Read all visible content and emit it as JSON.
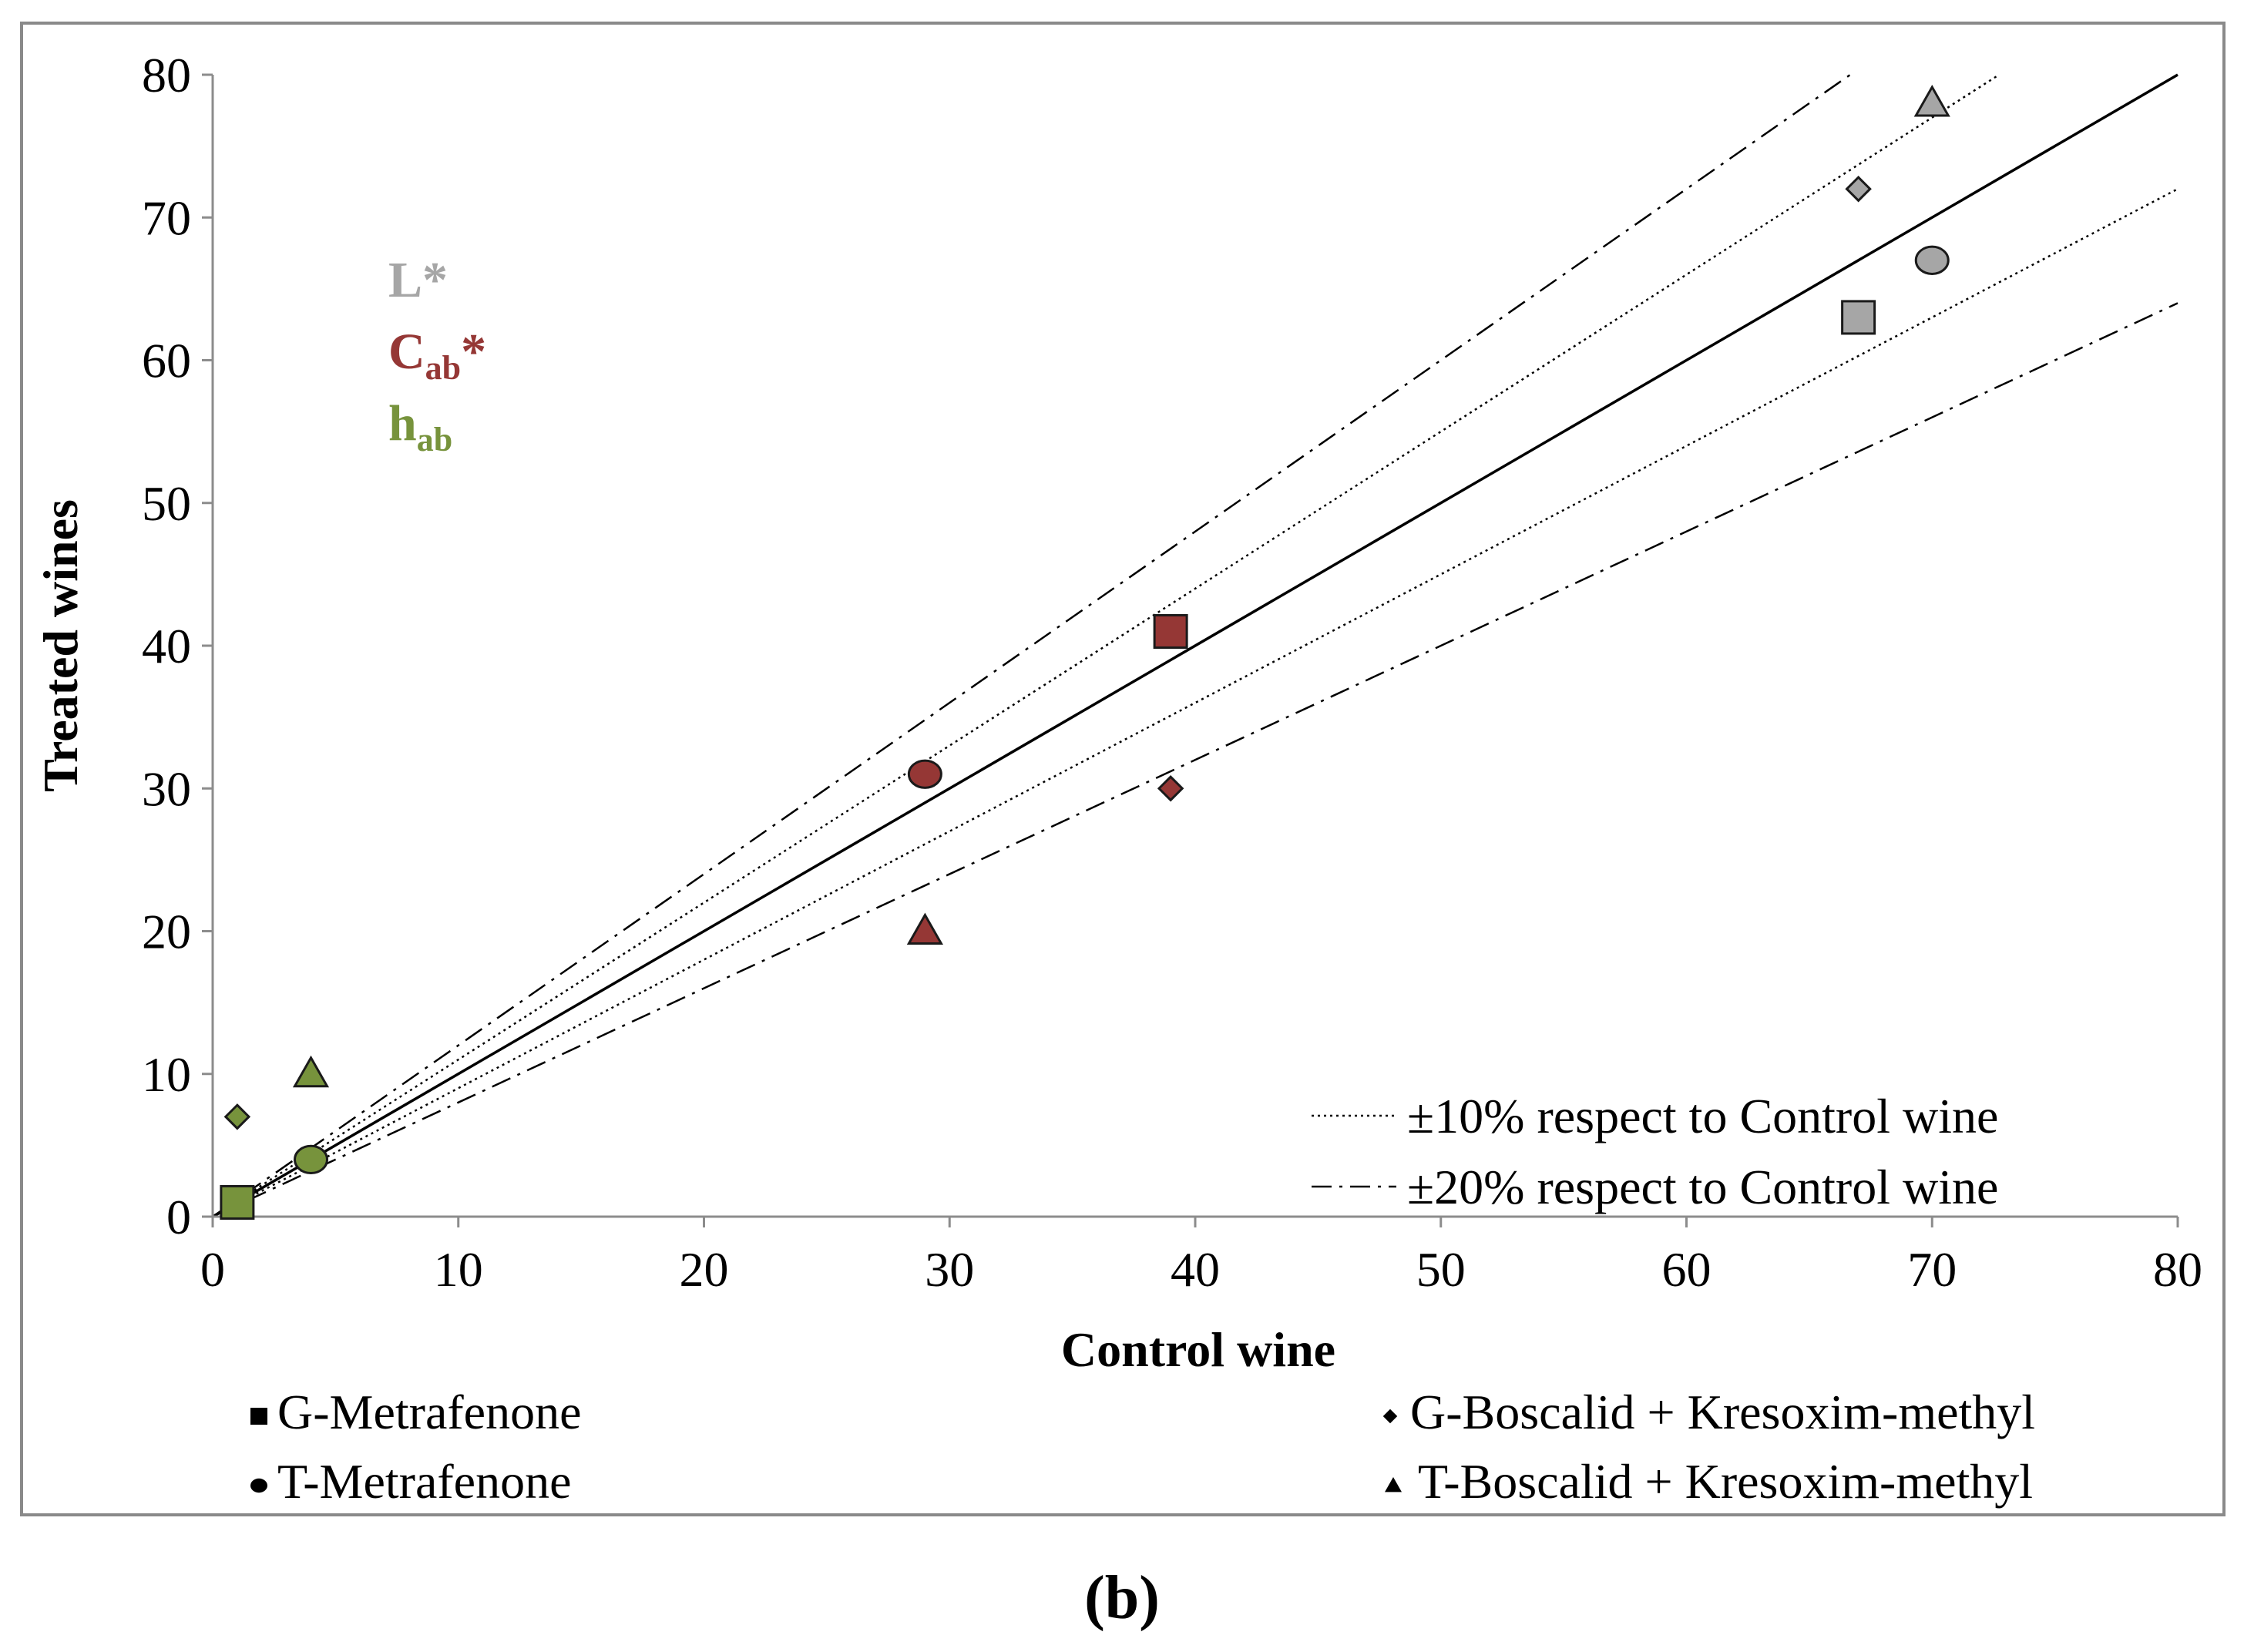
{
  "chart_data": {
    "type": "scatter",
    "panel_label": "(b)",
    "xlabel": "Control wine",
    "ylabel": "Treated wines",
    "xlim": [
      0,
      80
    ],
    "ylim": [
      0,
      80
    ],
    "xticks": [
      0,
      10,
      20,
      30,
      40,
      50,
      60,
      70,
      80
    ],
    "yticks": [
      0,
      10,
      20,
      30,
      40,
      50,
      60,
      70,
      80
    ],
    "grid": false,
    "reference_lines": [
      {
        "name": "identity",
        "slope": 1.0,
        "style": "solid"
      },
      {
        "name": "+10%",
        "slope": 1.1,
        "style": "dotted"
      },
      {
        "name": "-10%",
        "slope": 0.9,
        "style": "dotted"
      },
      {
        "name": "+20%",
        "slope": 1.2,
        "style": "dashdot"
      },
      {
        "name": "-20%",
        "slope": 0.8,
        "style": "dashdot"
      }
    ],
    "line_legend": [
      {
        "style": "dotted",
        "label": "±10% respect to Control wine"
      },
      {
        "style": "dashdot",
        "label": "±20% respect to Control wine"
      }
    ],
    "variables": [
      {
        "key": "L",
        "label": "L*",
        "base": "L",
        "sub": "",
        "suffix": "*",
        "color": "#a6a6a6"
      },
      {
        "key": "C",
        "label": "Cab*",
        "base": "C",
        "sub": "ab",
        "suffix": "*",
        "color": "#953735"
      },
      {
        "key": "h",
        "label": "hab",
        "base": "h",
        "sub": "ab",
        "suffix": "",
        "color": "#77933c"
      }
    ],
    "treatments": [
      {
        "key": "G-Met",
        "label": "G-Metrafenone",
        "marker": "square"
      },
      {
        "key": "T-Met",
        "label": "T-Metrafenone",
        "marker": "circle"
      },
      {
        "key": "G-BK",
        "label": "G-Boscalid + Kresoxim-methyl",
        "marker": "diamond"
      },
      {
        "key": "T-BK",
        "label": "T-Boscalid + Kresoxim-methyl",
        "marker": "triangle"
      }
    ],
    "points": [
      {
        "variable": "L",
        "treatment": "G-Met",
        "x": 67,
        "y": 63
      },
      {
        "variable": "L",
        "treatment": "T-Met",
        "x": 70,
        "y": 67
      },
      {
        "variable": "L",
        "treatment": "G-BK",
        "x": 67,
        "y": 72
      },
      {
        "variable": "L",
        "treatment": "T-BK",
        "x": 70,
        "y": 78
      },
      {
        "variable": "C",
        "treatment": "G-Met",
        "x": 39,
        "y": 41
      },
      {
        "variable": "C",
        "treatment": "T-Met",
        "x": 29,
        "y": 31
      },
      {
        "variable": "C",
        "treatment": "G-BK",
        "x": 39,
        "y": 30
      },
      {
        "variable": "C",
        "treatment": "T-BK",
        "x": 29,
        "y": 20
      },
      {
        "variable": "h",
        "treatment": "G-Met",
        "x": 1,
        "y": 1
      },
      {
        "variable": "h",
        "treatment": "T-Met",
        "x": 4,
        "y": 4
      },
      {
        "variable": "h",
        "treatment": "G-BK",
        "x": 1,
        "y": 7
      },
      {
        "variable": "h",
        "treatment": "T-BK",
        "x": 4,
        "y": 10
      }
    ]
  }
}
